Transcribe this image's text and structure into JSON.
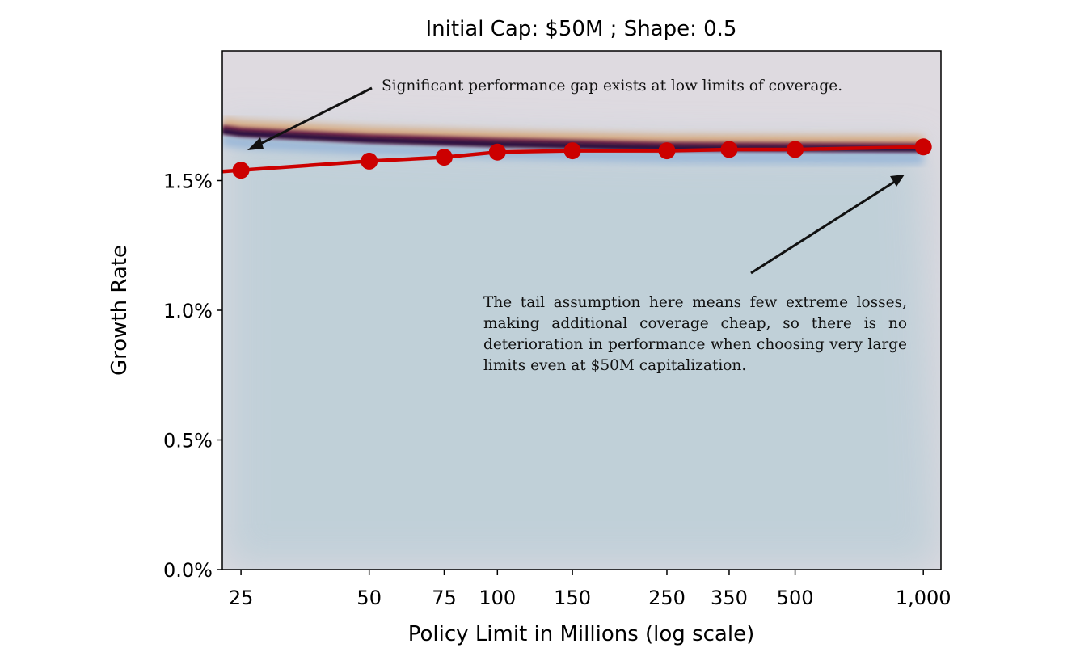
{
  "chart_data": {
    "type": "line",
    "title": "Initial Cap: $50M ; Shape: 0.5",
    "xlabel": "Policy Limit in Millions (log scale)",
    "ylabel": "Growth Rate",
    "xscale": "log",
    "xlim": [
      22.6,
      1100
    ],
    "ylim": [
      0,
      2.0
    ],
    "x_ticks": [
      25,
      50,
      75,
      100,
      150,
      250,
      350,
      500,
      1000
    ],
    "x_tick_labels": [
      "25",
      "50",
      "75",
      "100",
      "150",
      "250",
      "350",
      "500",
      "1,000"
    ],
    "y_ticks": [
      0,
      0.5,
      1.0,
      1.5
    ],
    "y_tick_labels": [
      "0.0%",
      "0.5%",
      "1.0%",
      "1.5%"
    ],
    "grid": false,
    "series": [
      {
        "name": "growth",
        "color": "#cc0000",
        "x": [
          25,
          50,
          75,
          100,
          150,
          250,
          350,
          500,
          1000
        ],
        "values": [
          1.54,
          1.575,
          1.59,
          1.61,
          1.615,
          1.615,
          1.62,
          1.62,
          1.63
        ]
      },
      {
        "name": "frontier",
        "color": "#2a0f3f",
        "x": [
          22.6,
          25,
          50,
          100,
          250,
          500,
          1000
        ],
        "values": [
          1.7,
          1.69,
          1.665,
          1.65,
          1.635,
          1.632,
          1.63
        ]
      }
    ],
    "annotations": [
      {
        "text": "Significant performance gap exists at low limits of coverage."
      },
      {
        "text": "The tail assumption here means few extreme losses, making additional coverage cheap, so there is no deterioration in performance when choosing very large limits even at $50M capitalization."
      }
    ]
  }
}
